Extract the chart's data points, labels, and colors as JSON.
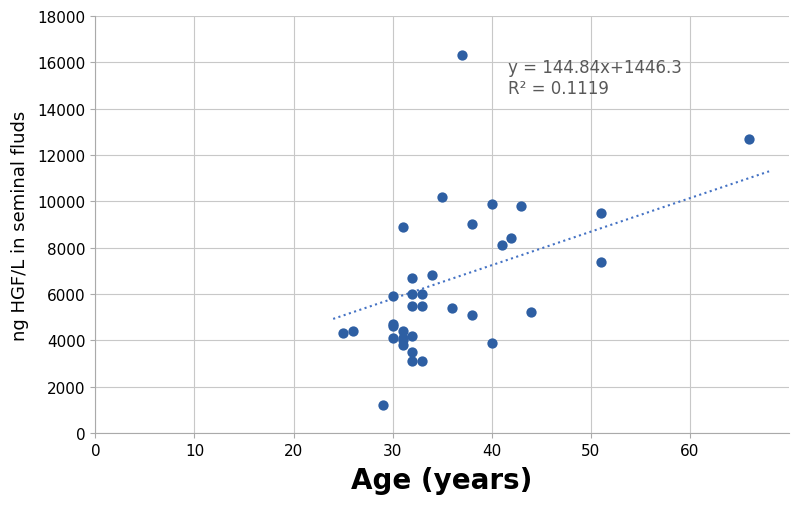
{
  "x_data": [
    25,
    26,
    29,
    30,
    30,
    30,
    30,
    31,
    31,
    31,
    31,
    31,
    32,
    32,
    32,
    32,
    32,
    32,
    33,
    33,
    33,
    34,
    35,
    36,
    37,
    38,
    38,
    40,
    40,
    41,
    42,
    43,
    44,
    51,
    51,
    66
  ],
  "y_data": [
    4300,
    4400,
    1200,
    4100,
    4600,
    4700,
    5900,
    3800,
    4000,
    4100,
    4400,
    8900,
    3100,
    3500,
    4200,
    5500,
    6000,
    6700,
    3100,
    5500,
    6000,
    6800,
    10200,
    5400,
    16300,
    5100,
    9000,
    3900,
    9900,
    8100,
    8400,
    9800,
    5200,
    7400,
    9500,
    12700
  ],
  "slope": 144.84,
  "intercept": 1446.3,
  "r2": 0.1119,
  "equation_text": "y = 144.84x+1446.3",
  "r2_text": "R² = 0.1119",
  "xlabel": "Age (years)",
  "ylabel": "ng HGF/L in seminal fluds",
  "xlim": [
    0,
    70
  ],
  "ylim": [
    0,
    18000
  ],
  "xticks": [
    0,
    10,
    20,
    30,
    40,
    50,
    60
  ],
  "yticks": [
    0,
    2000,
    4000,
    6000,
    8000,
    10000,
    12000,
    14000,
    16000,
    18000
  ],
  "dot_color": "#2e5fa3",
  "line_color": "#4472c4",
  "grid_color": "#c8c8c8",
  "bg_color": "#ffffff",
  "annotation_color": "#595959",
  "dot_size": 55,
  "line_width": 1.5,
  "line_x_start": 24,
  "line_x_end": 68,
  "xlabel_fontsize": 20,
  "ylabel_fontsize": 13,
  "tick_fontsize": 11,
  "annotation_fontsize": 12
}
